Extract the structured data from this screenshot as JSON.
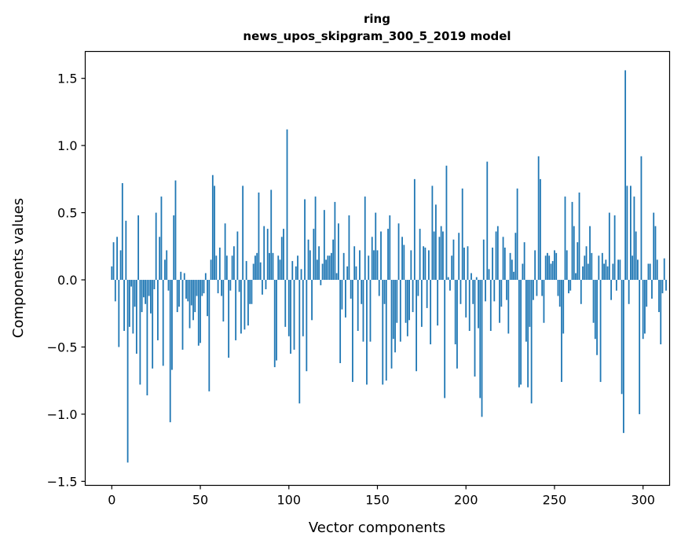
{
  "colors": {
    "bar": "#1f77b4",
    "axis": "#000000",
    "background": "#ffffff"
  },
  "chart_data": {
    "type": "bar",
    "title": [
      "ring",
      "news_upos_skipgram_300_5_2019 model"
    ],
    "xlabel": "Vector components",
    "ylabel": "Components values",
    "xlim": [
      -15,
      315
    ],
    "ylim": [
      -1.53,
      1.7
    ],
    "grid": false,
    "legend": "none",
    "x_ticks": [
      {
        "value": 0,
        "label": "0"
      },
      {
        "value": 50,
        "label": "50"
      },
      {
        "value": 100,
        "label": "100"
      },
      {
        "value": 150,
        "label": "150"
      },
      {
        "value": 200,
        "label": "200"
      },
      {
        "value": 250,
        "label": "250"
      },
      {
        "value": 300,
        "label": "300"
      }
    ],
    "y_ticks": [
      {
        "value": -1.5,
        "label": "−1.5"
      },
      {
        "value": -1.0,
        "label": "−1.0"
      },
      {
        "value": -0.5,
        "label": "−0.5"
      },
      {
        "value": 0.0,
        "label": "0.0"
      },
      {
        "value": 0.5,
        "label": "0.5"
      },
      {
        "value": 1.0,
        "label": "1.0"
      },
      {
        "value": 1.5,
        "label": "1.5"
      }
    ],
    "bar_width": 0.8,
    "values": [
      0.1,
      0.28,
      -0.16,
      0.32,
      -0.5,
      0.22,
      0.72,
      -0.38,
      0.44,
      -1.36,
      -0.35,
      -0.05,
      -0.4,
      -0.2,
      -0.55,
      0.48,
      -0.78,
      -0.24,
      -0.13,
      -0.18,
      -0.86,
      -0.12,
      -0.25,
      -0.66,
      -0.07,
      0.5,
      -0.45,
      0.32,
      0.62,
      -0.64,
      0.15,
      0.22,
      -0.08,
      -1.06,
      -0.67,
      0.48,
      0.74,
      -0.24,
      -0.2,
      0.06,
      -0.52,
      0.05,
      -0.14,
      -0.16,
      -0.36,
      -0.19,
      -0.3,
      -0.24,
      -0.12,
      -0.49,
      -0.47,
      -0.12,
      -0.1,
      0.05,
      -0.27,
      -0.83,
      0.15,
      0.78,
      0.7,
      0.18,
      -0.1,
      0.24,
      -0.12,
      -0.31,
      0.42,
      0.18,
      -0.58,
      -0.08,
      0.18,
      0.25,
      -0.45,
      0.36,
      -0.09,
      -0.4,
      0.7,
      -0.37,
      0.14,
      -0.34,
      -0.18,
      -0.18,
      0.12,
      0.18,
      0.2,
      0.65,
      0.13,
      -0.11,
      0.4,
      -0.07,
      0.38,
      0.2,
      0.67,
      0.2,
      -0.65,
      -0.6,
      0.18,
      0.15,
      0.32,
      0.38,
      -0.35,
      1.12,
      -0.42,
      -0.55,
      0.14,
      -0.52,
      0.1,
      0.18,
      -0.92,
      0.08,
      -0.42,
      0.6,
      -0.68,
      0.3,
      0.22,
      -0.3,
      0.38,
      0.62,
      0.15,
      0.25,
      -0.04,
      0.12,
      0.52,
      0.15,
      0.18,
      0.18,
      0.2,
      0.3,
      0.58,
      0.05,
      0.42,
      -0.62,
      -0.22,
      0.2,
      -0.28,
      0.1,
      0.48,
      -0.14,
      -0.76,
      0.25,
      0.1,
      -0.38,
      0.22,
      -0.18,
      -0.46,
      0.62,
      -0.78,
      0.18,
      -0.46,
      0.32,
      0.22,
      0.5,
      0.22,
      -0.12,
      0.36,
      -0.78,
      -0.18,
      -0.75,
      0.38,
      0.48,
      -0.66,
      -0.44,
      -0.54,
      -0.32,
      0.42,
      -0.46,
      0.32,
      0.26,
      -0.32,
      -0.42,
      -0.3,
      0.22,
      -0.24,
      0.75,
      -0.68,
      -0.12,
      0.38,
      -0.35,
      0.25,
      0.24,
      -0.21,
      0.22,
      -0.48,
      0.7,
      0.36,
      0.56,
      -0.34,
      0.32,
      0.4,
      0.36,
      -0.88,
      0.85,
      0.02,
      -0.08,
      0.18,
      0.3,
      -0.48,
      -0.66,
      0.35,
      -0.18,
      0.68,
      0.24,
      -0.28,
      0.25,
      -0.38,
      0.05,
      -0.18,
      -0.72,
      0.02,
      -0.36,
      -0.88,
      -1.02,
      0.3,
      -0.16,
      0.88,
      0.08,
      -0.38,
      0.24,
      -0.16,
      0.36,
      0.4,
      -0.32,
      -0.2,
      0.32,
      0.24,
      -0.15,
      -0.4,
      0.2,
      0.15,
      0.06,
      0.35,
      0.68,
      -0.8,
      -0.78,
      0.12,
      0.28,
      -0.46,
      -0.8,
      -0.35,
      -0.92,
      -0.15,
      0.22,
      -0.12,
      0.92,
      0.75,
      -0.12,
      -0.32,
      0.18,
      0.2,
      0.18,
      0.12,
      0.14,
      0.22,
      0.2,
      -0.12,
      -0.2,
      -0.76,
      -0.4,
      0.62,
      0.22,
      -0.1,
      -0.08,
      0.58,
      0.4,
      0.05,
      0.28,
      0.65,
      -0.18,
      0.1,
      0.18,
      0.25,
      0.12,
      0.4,
      0.2,
      -0.32,
      -0.44,
      -0.56,
      0.18,
      -0.76,
      0.2,
      0.12,
      0.15,
      0.1,
      0.5,
      -0.15,
      0.12,
      0.48,
      -0.08,
      0.15,
      0.15,
      -0.85,
      -1.14,
      1.56,
      0.7,
      -0.18,
      0.7,
      0.18,
      0.62,
      0.36,
      0.15,
      -1.0,
      0.92,
      -0.44,
      -0.4,
      -0.2,
      0.12,
      0.12,
      -0.14,
      0.5,
      0.4,
      0.15,
      -0.24,
      -0.48,
      -0.1,
      0.16,
      -0.08
    ]
  }
}
